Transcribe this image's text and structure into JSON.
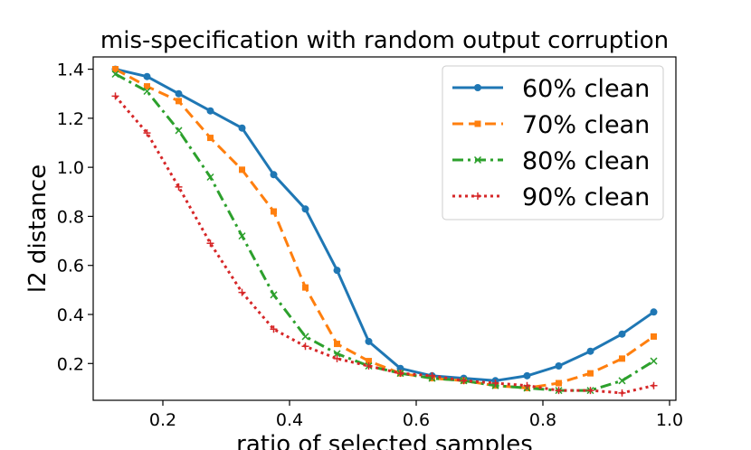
{
  "chart_data": {
    "type": "line",
    "title": "mis-specification with random output corruption",
    "xlabel": "ratio of selected samples",
    "ylabel": "l2 distance",
    "xlim": [
      0.09,
      1.01
    ],
    "ylim": [
      0.05,
      1.45
    ],
    "xticks": [
      0.2,
      0.4,
      0.6,
      0.8,
      1.0
    ],
    "xtick_labels": [
      "0.2",
      "0.4",
      "0.6",
      "0.8",
      "1.0"
    ],
    "yticks": [
      0.2,
      0.4,
      0.6,
      0.8,
      1.0,
      1.2,
      1.4
    ],
    "ytick_labels": [
      "0.2",
      "0.4",
      "0.6",
      "0.8",
      "1.0",
      "1.2",
      "1.4"
    ],
    "grid": false,
    "legend_position": "top-right",
    "x": [
      0.125,
      0.175,
      0.225,
      0.275,
      0.325,
      0.375,
      0.425,
      0.475,
      0.525,
      0.575,
      0.625,
      0.675,
      0.725,
      0.775,
      0.825,
      0.875,
      0.925,
      0.975
    ],
    "series": [
      {
        "name": "60% clean",
        "color": "#1f77b4",
        "line_style": "solid",
        "marker": "circle",
        "values": [
          1.4,
          1.37,
          1.3,
          1.23,
          1.16,
          0.97,
          0.83,
          0.58,
          0.29,
          0.18,
          0.15,
          0.14,
          0.13,
          0.15,
          0.19,
          0.25,
          0.32,
          0.41
        ]
      },
      {
        "name": "70% clean",
        "color": "#ff7f0e",
        "line_style": "dashed",
        "marker": "square",
        "values": [
          1.4,
          1.33,
          1.27,
          1.12,
          0.99,
          0.82,
          0.51,
          0.28,
          0.21,
          0.16,
          0.14,
          0.13,
          0.11,
          0.1,
          0.12,
          0.16,
          0.22,
          0.31
        ]
      },
      {
        "name": "80% clean",
        "color": "#2ca02c",
        "line_style": "dashdot",
        "marker": "x",
        "values": [
          1.38,
          1.31,
          1.15,
          0.96,
          0.72,
          0.48,
          0.31,
          0.24,
          0.19,
          0.16,
          0.14,
          0.13,
          0.11,
          0.1,
          0.09,
          0.09,
          0.13,
          0.21
        ]
      },
      {
        "name": "90% clean",
        "color": "#d62728",
        "line_style": "dotted",
        "marker": "plus",
        "values": [
          1.29,
          1.14,
          0.92,
          0.69,
          0.49,
          0.34,
          0.27,
          0.22,
          0.19,
          0.16,
          0.15,
          0.13,
          0.12,
          0.11,
          0.09,
          0.09,
          0.08,
          0.11
        ]
      }
    ]
  }
}
